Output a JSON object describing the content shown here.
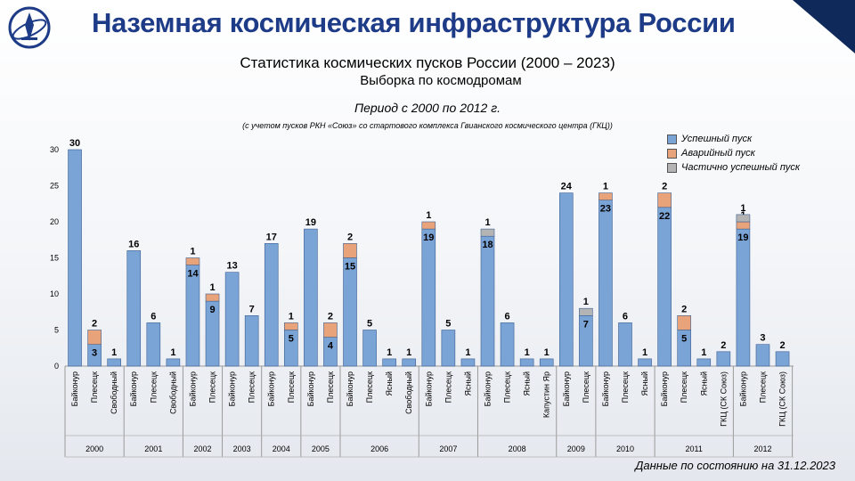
{
  "header": {
    "title": "Наземная космическая инфраструктура России",
    "subtitle": "Статистика космических пусков России (2000 – 2023)",
    "subtitle2": "Выборка по космодромам",
    "period": "Период с 2000 по 2012 г.",
    "note": "(с учетом пусков РКН «Союз» со стартового комплекса Гвианского космического центра (ГКЦ))"
  },
  "footer": {
    "text": "Данные по состоянию на 31.12.2023"
  },
  "colors": {
    "success": "#7aa3d6",
    "failure": "#e9a37a",
    "partial": "#b4b4b4",
    "title": "#1d3b86",
    "corner": "#0f2a5a"
  },
  "chart_data": {
    "type": "bar",
    "stacked": true,
    "ylim": [
      0,
      30
    ],
    "yticks": [
      "0",
      "5",
      "10",
      "15",
      "20",
      "25",
      "30"
    ],
    "legend_position": "top-right",
    "series": [
      {
        "name": "Успешный пуск",
        "color": "#7aa3d6"
      },
      {
        "name": "Аварийный пуск",
        "color": "#e9a37a"
      },
      {
        "name": "Частично успешный пуск",
        "color": "#b4b4b4"
      }
    ],
    "groups": [
      {
        "year": "2000",
        "bars": [
          {
            "site": "Байконур",
            "values": [
              30,
              0,
              0
            ],
            "labels": [
              "30",
              "",
              ""
            ]
          },
          {
            "site": "Плесецк",
            "values": [
              3,
              2,
              0
            ],
            "labels": [
              "3",
              "2",
              ""
            ]
          },
          {
            "site": "Свободный",
            "values": [
              1,
              0,
              0
            ],
            "labels": [
              "1",
              "",
              ""
            ]
          }
        ]
      },
      {
        "year": "2001",
        "bars": [
          {
            "site": "Байконур",
            "values": [
              16,
              0,
              0
            ],
            "labels": [
              "16",
              "",
              ""
            ]
          },
          {
            "site": "Плесецк",
            "values": [
              6,
              0,
              0
            ],
            "labels": [
              "6",
              "",
              ""
            ]
          },
          {
            "site": "Свободный",
            "values": [
              1,
              0,
              0
            ],
            "labels": [
              "1",
              "",
              ""
            ]
          }
        ]
      },
      {
        "year": "2002",
        "bars": [
          {
            "site": "Байконур",
            "values": [
              14,
              1,
              0
            ],
            "labels": [
              "14",
              "1",
              ""
            ]
          },
          {
            "site": "Плесецк",
            "values": [
              9,
              1,
              0
            ],
            "labels": [
              "9",
              "1",
              ""
            ]
          }
        ]
      },
      {
        "year": "2003",
        "bars": [
          {
            "site": "Байконур",
            "values": [
              13,
              0,
              0
            ],
            "labels": [
              "13",
              "",
              ""
            ]
          },
          {
            "site": "Плесецк",
            "values": [
              7,
              0,
              0
            ],
            "labels": [
              "7",
              "",
              ""
            ]
          }
        ]
      },
      {
        "year": "2004",
        "bars": [
          {
            "site": "Байконур",
            "values": [
              17,
              0,
              0
            ],
            "labels": [
              "17",
              "",
              ""
            ]
          },
          {
            "site": "Плесецк",
            "values": [
              5,
              1,
              0
            ],
            "labels": [
              "5",
              "1",
              ""
            ]
          }
        ]
      },
      {
        "year": "2005",
        "bars": [
          {
            "site": "Байконур",
            "values": [
              19,
              0,
              0
            ],
            "labels": [
              "19",
              "",
              ""
            ]
          },
          {
            "site": "Плесецк",
            "values": [
              4,
              2,
              0
            ],
            "labels": [
              "4",
              "2",
              ""
            ]
          }
        ]
      },
      {
        "year": "2006",
        "bars": [
          {
            "site": "Байконур",
            "values": [
              15,
              2,
              0
            ],
            "labels": [
              "15",
              "2",
              ""
            ]
          },
          {
            "site": "Плесецк",
            "values": [
              5,
              0,
              0
            ],
            "labels": [
              "5",
              "",
              ""
            ]
          },
          {
            "site": "Ясный",
            "values": [
              1,
              0,
              0
            ],
            "labels": [
              "1",
              "",
              ""
            ]
          },
          {
            "site": "Свободный",
            "values": [
              1,
              0,
              0
            ],
            "labels": [
              "1",
              "",
              ""
            ]
          }
        ]
      },
      {
        "year": "2007",
        "bars": [
          {
            "site": "Байконур",
            "values": [
              19,
              1,
              0
            ],
            "labels": [
              "19",
              "1",
              ""
            ]
          },
          {
            "site": "Плесецк",
            "values": [
              5,
              0,
              0
            ],
            "labels": [
              "5",
              "",
              ""
            ]
          },
          {
            "site": "Ясный",
            "values": [
              1,
              0,
              0
            ],
            "labels": [
              "1",
              "",
              ""
            ]
          }
        ]
      },
      {
        "year": "2008",
        "bars": [
          {
            "site": "Байконур",
            "values": [
              18,
              0,
              1
            ],
            "labels": [
              "18",
              "",
              "1"
            ]
          },
          {
            "site": "Плесецк",
            "values": [
              6,
              0,
              0
            ],
            "labels": [
              "6",
              "",
              ""
            ]
          },
          {
            "site": "Ясный",
            "values": [
              1,
              0,
              0
            ],
            "labels": [
              "1",
              "",
              ""
            ]
          },
          {
            "site": "Капустин Яр",
            "values": [
              1,
              0,
              0
            ],
            "labels": [
              "1",
              "",
              ""
            ]
          }
        ]
      },
      {
        "year": "2009",
        "bars": [
          {
            "site": "Байконур",
            "values": [
              24,
              0,
              0
            ],
            "labels": [
              "24",
              "",
              ""
            ]
          },
          {
            "site": "Плесецк",
            "values": [
              7,
              0,
              1
            ],
            "labels": [
              "7",
              "",
              "1"
            ]
          }
        ]
      },
      {
        "year": "2010",
        "bars": [
          {
            "site": "Байконур",
            "values": [
              23,
              1,
              0
            ],
            "labels": [
              "23",
              "1",
              ""
            ]
          },
          {
            "site": "Плесецк",
            "values": [
              6,
              0,
              0
            ],
            "labels": [
              "6",
              "",
              ""
            ]
          },
          {
            "site": "Ясный",
            "values": [
              1,
              0,
              0
            ],
            "labels": [
              "1",
              "",
              ""
            ]
          }
        ]
      },
      {
        "year": "2011",
        "bars": [
          {
            "site": "Байконур",
            "values": [
              22,
              2,
              0
            ],
            "labels": [
              "22",
              "2",
              ""
            ]
          },
          {
            "site": "Плесецк",
            "values": [
              5,
              2,
              0
            ],
            "labels": [
              "5",
              "2",
              ""
            ]
          },
          {
            "site": "Ясный",
            "values": [
              1,
              0,
              0
            ],
            "labels": [
              "1",
              "",
              ""
            ]
          },
          {
            "site": "ГКЦ (СК Союз)",
            "values": [
              2,
              0,
              0
            ],
            "labels": [
              "2",
              "",
              ""
            ]
          }
        ]
      },
      {
        "year": "2012",
        "bars": [
          {
            "site": "Байконур",
            "values": [
              19,
              1,
              1
            ],
            "labels": [
              "19",
              "1",
              "1"
            ]
          },
          {
            "site": "Плесецк",
            "values": [
              3,
              0,
              0
            ],
            "labels": [
              "3",
              "",
              ""
            ]
          },
          {
            "site": "ГКЦ (СК Союз)",
            "values": [
              2,
              0,
              0
            ],
            "labels": [
              "2",
              "",
              ""
            ]
          }
        ]
      }
    ]
  }
}
